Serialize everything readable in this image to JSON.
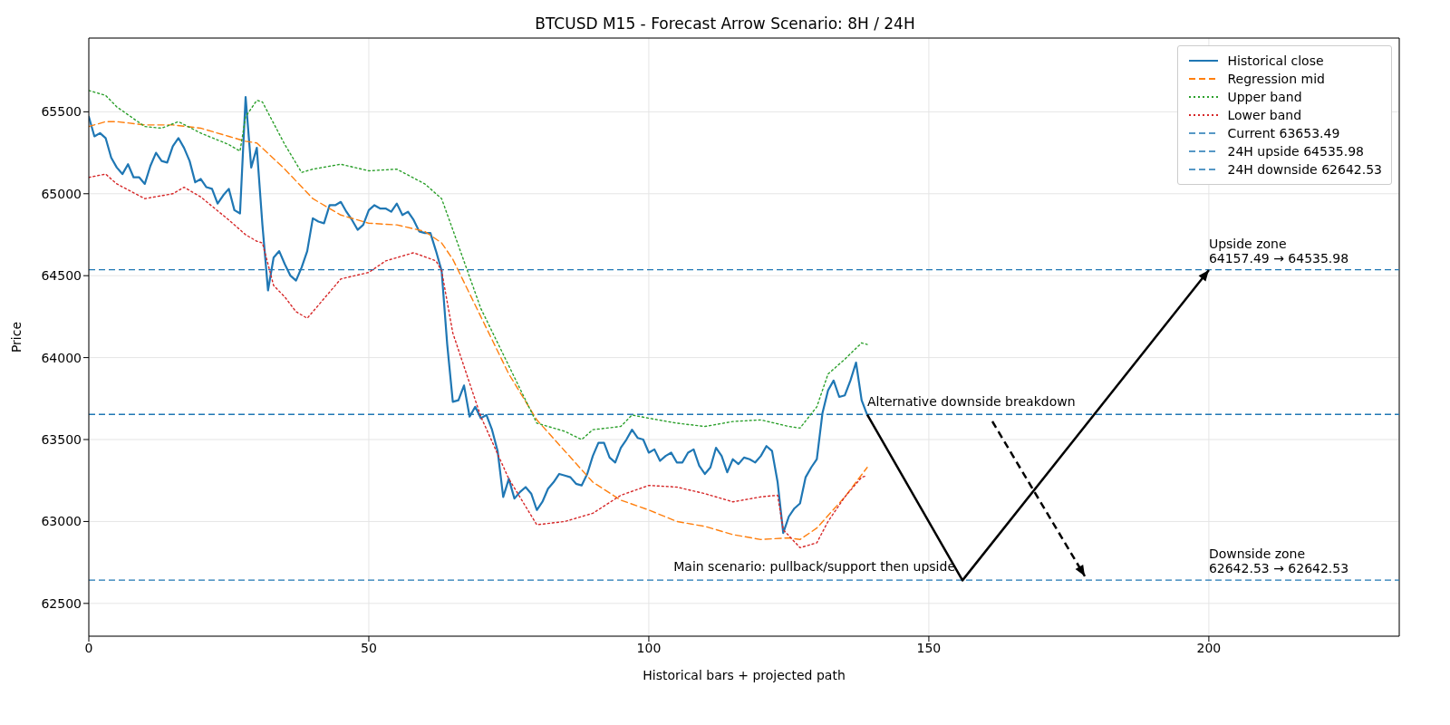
{
  "chart_data": {
    "type": "line",
    "title": "BTCUSD M15 - Forecast Arrow Scenario: 8H / 24H",
    "xlabel": "Historical bars + projected path",
    "ylabel": "Price",
    "x": [
      0,
      1,
      2,
      3,
      4,
      5,
      6,
      7,
      8,
      9,
      10,
      11,
      12,
      13,
      14,
      15,
      16,
      17,
      18,
      19,
      20,
      21,
      22,
      23,
      24,
      25,
      26,
      27,
      28,
      29,
      30,
      31,
      32,
      33,
      34,
      35,
      36,
      37,
      38,
      39,
      40,
      41,
      42,
      43,
      44,
      45,
      46,
      47,
      48,
      49,
      50,
      51,
      52,
      53,
      54,
      55,
      56,
      57,
      58,
      59,
      60,
      61,
      62,
      63,
      64,
      65,
      66,
      67,
      68,
      69,
      70,
      71,
      72,
      73,
      74,
      75,
      76,
      77,
      78,
      79,
      80,
      81,
      82,
      83,
      84,
      85,
      86,
      87,
      88,
      89,
      90,
      91,
      92,
      93,
      94,
      95,
      96,
      97,
      98,
      99,
      100,
      101,
      102,
      103,
      104,
      105,
      106,
      107,
      108,
      109,
      110,
      111,
      112,
      113,
      114,
      115,
      116,
      117,
      118,
      119,
      120,
      121,
      122,
      123,
      124,
      125,
      126,
      127,
      128,
      129,
      130,
      131,
      132,
      133,
      134,
      135,
      136,
      137,
      138,
      139
    ],
    "series": [
      {
        "name": "Historical close",
        "color": "#1f77b4",
        "line_style": "solid",
        "values": [
          65470,
          65350,
          65370,
          65340,
          65220,
          65160,
          65120,
          65180,
          65100,
          65100,
          65060,
          65170,
          65250,
          65200,
          65190,
          65290,
          65340,
          65280,
          65200,
          65070,
          65090,
          65040,
          65030,
          64940,
          64990,
          65030,
          64900,
          64880,
          65590,
          65160,
          65280,
          64810,
          64410,
          64610,
          64650,
          64570,
          64500,
          64470,
          64550,
          64650,
          64850,
          64830,
          64820,
          64930,
          64930,
          64950,
          64890,
          64840,
          64780,
          64810,
          64900,
          64930,
          64910,
          64910,
          64890,
          64940,
          64870,
          64890,
          64840,
          64770,
          64760,
          64760,
          64650,
          64530,
          64080,
          63730,
          63740,
          63830,
          63640,
          63700,
          63630,
          63650,
          63560,
          63430,
          63150,
          63260,
          63140,
          63180,
          63210,
          63170,
          63070,
          63120,
          63200,
          63240,
          63290,
          63280,
          63270,
          63230,
          63220,
          63290,
          63400,
          63480,
          63480,
          63390,
          63360,
          63450,
          63500,
          63560,
          63510,
          63500,
          63420,
          63440,
          63370,
          63400,
          63420,
          63360,
          63360,
          63420,
          63440,
          63340,
          63290,
          63330,
          63450,
          63400,
          63300,
          63380,
          63350,
          63390,
          63380,
          63360,
          63400,
          63460,
          63430,
          63240,
          62930,
          63030,
          63080,
          63110,
          63270,
          63330,
          63380,
          63660,
          63800,
          63860,
          63760,
          63770,
          63860,
          63970,
          63740,
          63650
        ]
      },
      {
        "name": "Regression mid",
        "color": "#ff7f0e",
        "line_style": "dashed",
        "x": [
          0,
          3,
          5,
          10,
          15,
          20,
          25,
          28,
          30,
          35,
          40,
          45,
          50,
          55,
          60,
          63,
          65,
          70,
          75,
          80,
          85,
          90,
          95,
          100,
          105,
          110,
          115,
          120,
          125,
          127,
          130,
          135,
          139
        ],
        "values": [
          65410,
          65440,
          65440,
          65420,
          65420,
          65400,
          65350,
          65320,
          65310,
          65150,
          64970,
          64870,
          64820,
          64810,
          64770,
          64700,
          64600,
          64250,
          63900,
          63620,
          63430,
          63240,
          63130,
          63070,
          63000,
          62970,
          62920,
          62890,
          62900,
          62890,
          62960,
          63150,
          63330
        ]
      },
      {
        "name": "Upper band",
        "color": "#2ca02c",
        "line_style": "dotted",
        "x": [
          0,
          3,
          5,
          10,
          13,
          16,
          20,
          25,
          27,
          28,
          30,
          31,
          35,
          38,
          40,
          45,
          50,
          55,
          60,
          63,
          65,
          70,
          75,
          80,
          85,
          88,
          90,
          95,
          97,
          100,
          105,
          110,
          115,
          120,
          125,
          127,
          130,
          132,
          135,
          138,
          139
        ],
        "values": [
          65630,
          65600,
          65530,
          65410,
          65400,
          65440,
          65370,
          65300,
          65260,
          65470,
          65570,
          65560,
          65300,
          65130,
          65150,
          65180,
          65140,
          65150,
          65060,
          64970,
          64780,
          64300,
          63950,
          63600,
          63550,
          63500,
          63560,
          63580,
          63650,
          63630,
          63600,
          63580,
          63610,
          63620,
          63580,
          63570,
          63700,
          63900,
          63990,
          64090,
          64080
        ]
      },
      {
        "name": "Lower band",
        "color": "#d62728",
        "line_style": "dotted",
        "x": [
          0,
          3,
          5,
          10,
          15,
          17,
          20,
          25,
          28,
          30,
          31,
          33,
          35,
          37,
          39,
          42,
          45,
          50,
          53,
          58,
          62,
          63,
          65,
          70,
          75,
          80,
          85,
          90,
          95,
          100,
          105,
          110,
          115,
          120,
          123,
          124,
          127,
          130,
          132,
          135,
          138,
          139
        ],
        "values": [
          65100,
          65120,
          65060,
          64970,
          65000,
          65040,
          64980,
          64840,
          64750,
          64710,
          64700,
          64440,
          64370,
          64280,
          64240,
          64360,
          64480,
          64520,
          64590,
          64640,
          64590,
          64530,
          64150,
          63640,
          63260,
          62980,
          63000,
          63050,
          63160,
          63220,
          63210,
          63170,
          63120,
          63150,
          63160,
          62950,
          62840,
          62870,
          63000,
          63150,
          63270,
          63280
        ]
      }
    ],
    "ref_lines": [
      {
        "axis": "y",
        "value": 63653.49,
        "label": "Current 63653.49",
        "color": "#1f77b4",
        "line_style": "dashed"
      },
      {
        "axis": "y",
        "value": 64535.98,
        "label": "24H upside 64535.98",
        "color": "#1f77b4",
        "line_style": "dashed"
      },
      {
        "axis": "y",
        "value": 62642.53,
        "label": "24H downside 62642.53",
        "color": "#1f77b4",
        "line_style": "dashed"
      }
    ],
    "annotations": [
      {
        "text": "Alternative downside breakdown",
        "x": 139,
        "y": 63653.49
      },
      {
        "text": "Main scenario: pullback/support then upside",
        "x": 156,
        "y": 62642.53
      },
      {
        "text": "Upside zone\n64157.49 → 64535.98",
        "x": 200,
        "y": 64535.98
      },
      {
        "text": "Downside zone\n62642.53 → 62642.53",
        "x": 200,
        "y": 62642.53
      }
    ],
    "xlim": [
      0,
      234
    ],
    "xticks": [
      0,
      50,
      100,
      150,
      200
    ],
    "ylim": [
      62300,
      65950
    ],
    "yticks": [
      62500,
      63000,
      63500,
      64000,
      64500,
      65000,
      65500
    ],
    "grid": true,
    "legend": "top right",
    "marker": "none"
  }
}
